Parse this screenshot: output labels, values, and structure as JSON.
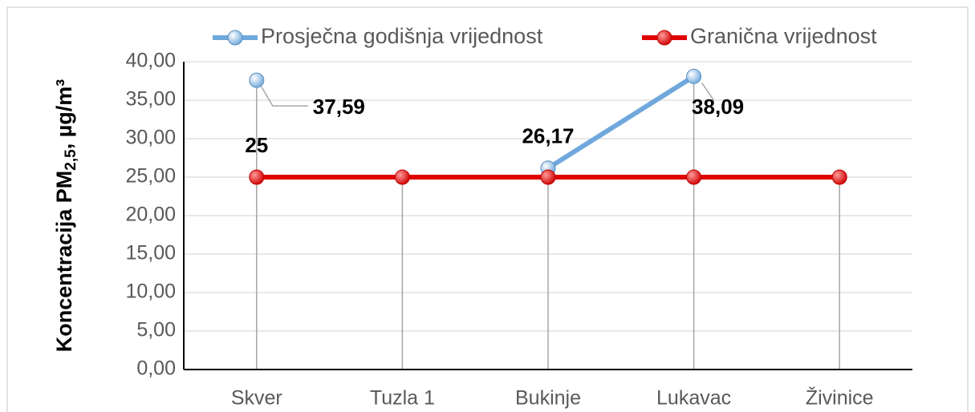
{
  "chart_data": {
    "type": "line",
    "y_label": {
      "text": "Koncentracija PM",
      "sub": "2,5",
      "suffix": ", µg/m³"
    },
    "categories": [
      "Skver",
      "Tuzla 1",
      "Bukinje",
      "Lukavac",
      "Živinice"
    ],
    "series": [
      {
        "name": "Prosječna godišnja vrijednost",
        "color": "#6fa8dc",
        "values": [
          37.59,
          null,
          26.17,
          38.09,
          null
        ],
        "value_labels": [
          "37,59",
          null,
          "26,17",
          "38,09",
          null
        ]
      },
      {
        "name": "Granična vrijednost",
        "color": "#e00000",
        "values": [
          25,
          25,
          25,
          25,
          25
        ],
        "value_labels": [
          "25",
          null,
          null,
          null,
          null
        ]
      }
    ],
    "ylim": [
      0,
      40
    ],
    "yticks": [
      {
        "value": 0,
        "label": "0,00"
      },
      {
        "value": 5,
        "label": "5,00"
      },
      {
        "value": 10,
        "label": "10,00"
      },
      {
        "value": 15,
        "label": "15,00"
      },
      {
        "value": 20,
        "label": "20,00"
      },
      {
        "value": 25,
        "label": "25,00"
      },
      {
        "value": 30,
        "label": "30,00"
      },
      {
        "value": 35,
        "label": "35,00"
      },
      {
        "value": 40,
        "label": "40,00"
      }
    ],
    "grid": true,
    "drop_lines": true,
    "legend": "top"
  }
}
